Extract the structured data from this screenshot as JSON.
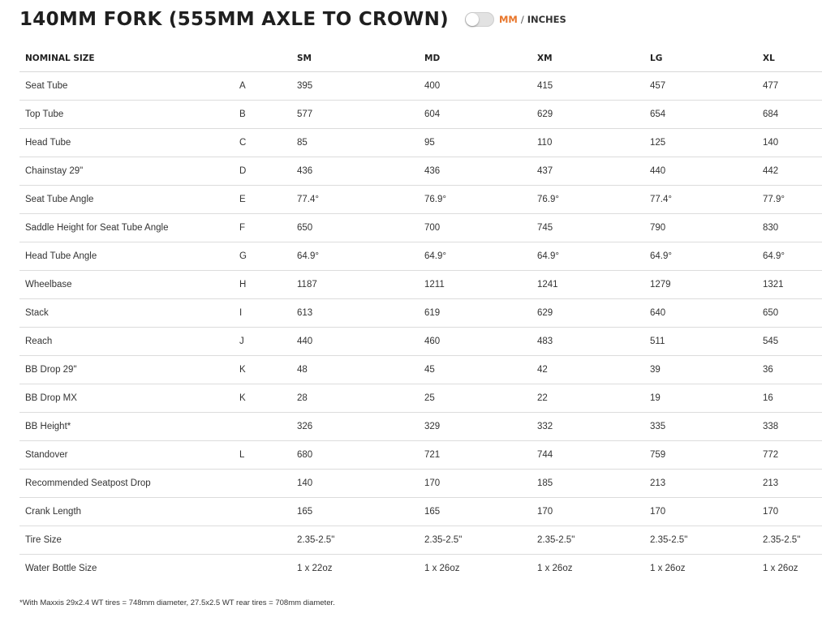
{
  "header": {
    "title": "140MM FORK (555MM AXLE TO CROWN)",
    "unit_mm": "MM",
    "unit_separator": "/",
    "unit_inches": "INCHES",
    "accent_color": "#e8762b"
  },
  "table": {
    "columns": [
      "NOMINAL SIZE",
      "",
      "SM",
      "MD",
      "XM",
      "LG",
      "XL"
    ],
    "rows": [
      {
        "name": "Seat Tube",
        "letter": "A",
        "values": [
          "395",
          "400",
          "415",
          "457",
          "477"
        ]
      },
      {
        "name": "Top Tube",
        "letter": "B",
        "values": [
          "577",
          "604",
          "629",
          "654",
          "684"
        ]
      },
      {
        "name": "Head Tube",
        "letter": "C",
        "values": [
          "85",
          "95",
          "110",
          "125",
          "140"
        ]
      },
      {
        "name": "Chainstay 29\"",
        "letter": "D",
        "values": [
          "436",
          "436",
          "437",
          "440",
          "442"
        ]
      },
      {
        "name": "Seat Tube Angle",
        "letter": "E",
        "values": [
          "77.4°",
          "76.9°",
          "76.9°",
          "77.4°",
          "77.9°"
        ]
      },
      {
        "name": "Saddle Height for Seat Tube Angle",
        "letter": "F",
        "values": [
          "650",
          "700",
          "745",
          "790",
          "830"
        ]
      },
      {
        "name": "Head Tube Angle",
        "letter": "G",
        "values": [
          "64.9°",
          "64.9°",
          "64.9°",
          "64.9°",
          "64.9°"
        ]
      },
      {
        "name": "Wheelbase",
        "letter": "H",
        "values": [
          "1187",
          "1211",
          "1241",
          "1279",
          "1321"
        ]
      },
      {
        "name": "Stack",
        "letter": "I",
        "values": [
          "613",
          "619",
          "629",
          "640",
          "650"
        ]
      },
      {
        "name": "Reach",
        "letter": "J",
        "values": [
          "440",
          "460",
          "483",
          "511",
          "545"
        ]
      },
      {
        "name": "BB Drop 29\"",
        "letter": "K",
        "values": [
          "48",
          "45",
          "42",
          "39",
          "36"
        ]
      },
      {
        "name": "BB Drop MX",
        "letter": "K",
        "values": [
          "28",
          "25",
          "22",
          "19",
          "16"
        ]
      },
      {
        "name": "BB Height*",
        "letter": "",
        "values": [
          "326",
          "329",
          "332",
          "335",
          "338"
        ]
      },
      {
        "name": "Standover",
        "letter": "L",
        "values": [
          "680",
          "721",
          "744",
          "759",
          "772"
        ]
      },
      {
        "name": "Recommended Seatpost Drop",
        "letter": "",
        "values": [
          "140",
          "170",
          "185",
          "213",
          "213"
        ]
      },
      {
        "name": "Crank Length",
        "letter": "",
        "values": [
          "165",
          "165",
          "170",
          "170",
          "170"
        ]
      },
      {
        "name": "Tire Size",
        "letter": "",
        "values": [
          "2.35-2.5\"",
          "2.35-2.5\"",
          "2.35-2.5\"",
          "2.35-2.5\"",
          "2.35-2.5\""
        ]
      },
      {
        "name": "Water Bottle Size",
        "letter": "",
        "values": [
          "1 x 22oz",
          "1 x 26oz",
          "1 x 26oz",
          "1 x 26oz",
          "1 x 26oz"
        ]
      }
    ]
  },
  "footnote": "*With Maxxis 29x2.4 WT tires = 748mm diameter, 27.5x2.5 WT rear tires = 708mm diameter."
}
